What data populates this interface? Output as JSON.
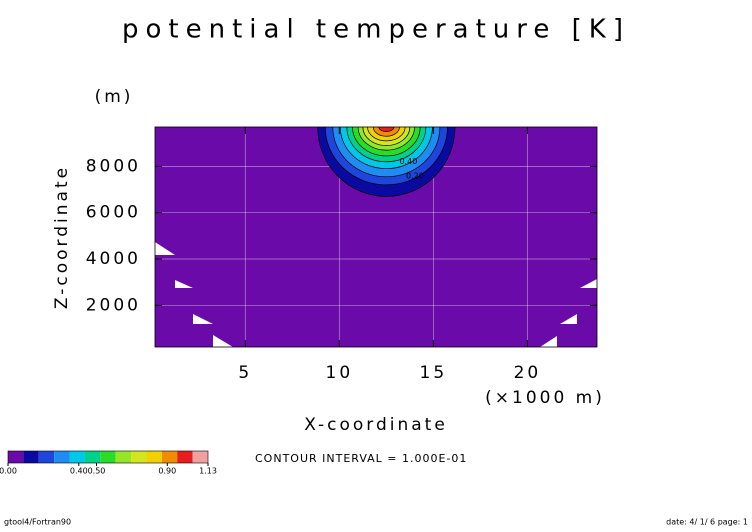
{
  "chart_data": {
    "type": "contour",
    "title": "potential temperature [K]",
    "y_unit": "(m)",
    "y_label": "Z-coordinate",
    "x_label": "X-coordinate",
    "x_unit": "(×1000 m)",
    "xlim": [
      0.2,
      23.7
    ],
    "xticks": [
      5,
      10,
      15,
      20
    ],
    "ylim": [
      200,
      9700
    ],
    "yticks": [
      2000,
      4000,
      6000,
      8000
    ],
    "grid": true,
    "center": [
      12.5,
      9700
    ],
    "contours": [
      {
        "level": 0.1,
        "half_width": 3.65,
        "depth": 3000
      },
      {
        "level": 0.2,
        "half_width": 3.25,
        "depth": 2500
      },
      {
        "level": 0.3,
        "half_width": 2.85,
        "depth": 2150
      },
      {
        "level": 0.4,
        "half_width": 2.45,
        "depth": 1800
      },
      {
        "level": 0.5,
        "half_width": 2.1,
        "depth": 1500
      },
      {
        "level": 0.6,
        "half_width": 1.8,
        "depth": 1250
      },
      {
        "level": 0.7,
        "half_width": 1.5,
        "depth": 1000
      },
      {
        "level": 0.8,
        "half_width": 1.25,
        "depth": 800
      },
      {
        "level": 0.9,
        "half_width": 1.0,
        "depth": 600
      },
      {
        "level": 1.0,
        "half_width": 0.7,
        "depth": 400
      },
      {
        "level": 1.1,
        "half_width": 0.4,
        "depth": 200
      }
    ],
    "contour_labels": [
      {
        "value": 0.4,
        "label": "0.40"
      },
      {
        "value": 0.2,
        "label": "0.20"
      }
    ],
    "colors": [
      "#6a0aa8",
      "#0a0aa0",
      "#1e46dc",
      "#1e8cf0",
      "#00c8e6",
      "#00d28c",
      "#28dc28",
      "#96e628",
      "#d2e61e",
      "#f0d200",
      "#f08c00",
      "#e61e1e",
      "#f0a0a0"
    ],
    "clim": [
      0,
      1.13
    ],
    "colorbar_ticks": [
      {
        "value": 0,
        "label": "0.00"
      },
      {
        "value": 0.4,
        "label": "0.40"
      },
      {
        "value": 0.5,
        "label": "0.50"
      },
      {
        "value": 0.9,
        "label": "0.90"
      },
      {
        "value": 1.13,
        "label": "1.13"
      }
    ],
    "contour_interval": "CONTOUR INTERVAL = 1.000E-01",
    "footer_left": "gtool4/Fortran90",
    "footer_right": "date: 4/ 1/ 6 page: 1"
  }
}
